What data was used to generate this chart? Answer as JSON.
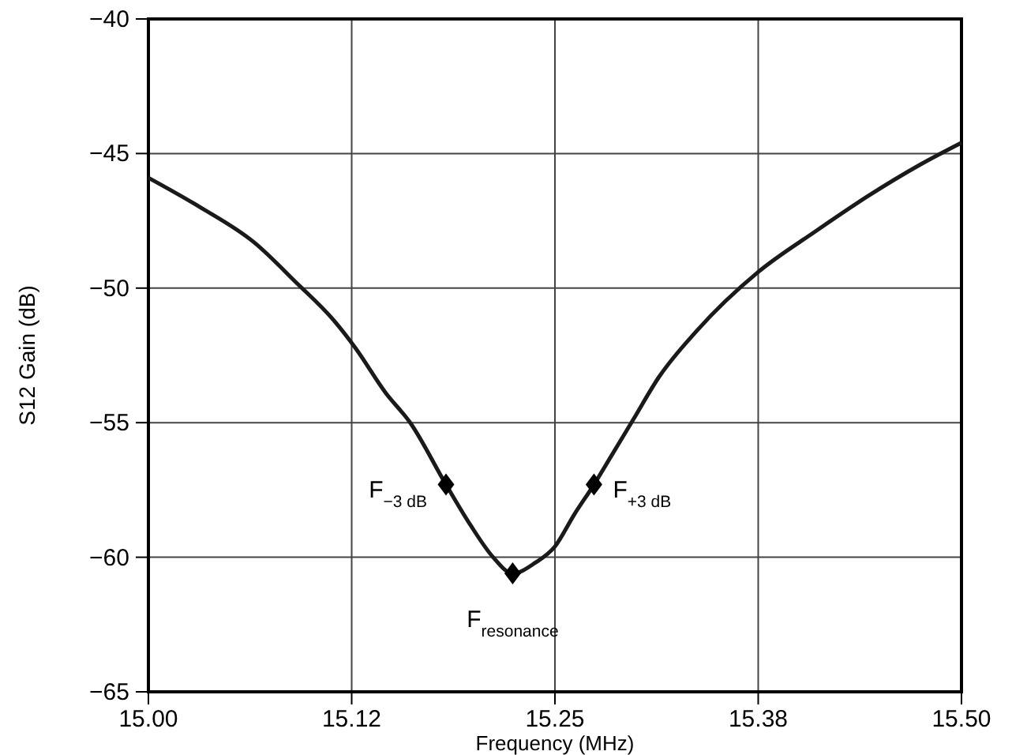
{
  "chart_data": {
    "type": "line",
    "xlabel": "Frequency (MHz)",
    "ylabel": "S12 Gain (dB)",
    "xlim": [
      15.0,
      15.5
    ],
    "ylim": [
      -65,
      -40
    ],
    "xticks": [
      {
        "value": 15.0,
        "label": "15.00"
      },
      {
        "value": 15.125,
        "label": "15.12"
      },
      {
        "value": 15.25,
        "label": "15.25"
      },
      {
        "value": 15.375,
        "label": "15.38"
      },
      {
        "value": 15.5,
        "label": "15.50"
      }
    ],
    "yticks": [
      -65,
      -60,
      -55,
      -50,
      -45,
      -40
    ],
    "grid": true,
    "series": [
      {
        "color": "#1a1a1a",
        "marker": "none",
        "line_style": "solid",
        "x": [
          15.0,
          15.032,
          15.065,
          15.091,
          15.114,
          15.127,
          15.146,
          15.161,
          15.183,
          15.198,
          15.212,
          15.224,
          15.238,
          15.25,
          15.262,
          15.274,
          15.285,
          15.298,
          15.314,
          15.337,
          15.375,
          15.41,
          15.442,
          15.475,
          15.5
        ],
        "values": [
          -45.9,
          -47.0,
          -48.3,
          -49.8,
          -51.2,
          -52.2,
          -53.9,
          -55.0,
          -57.3,
          -58.8,
          -60.0,
          -60.6,
          -60.2,
          -59.6,
          -58.4,
          -57.3,
          -56.2,
          -54.9,
          -53.3,
          -51.6,
          -49.4,
          -47.9,
          -46.6,
          -45.4,
          -44.6
        ]
      },
      {
        "type": "scatter",
        "color": "#000000",
        "marker": "diamond",
        "x": [
          15.183,
          15.224,
          15.274
        ],
        "values": [
          -57.3,
          -60.6,
          -57.3
        ]
      }
    ],
    "annotations": [
      {
        "text": "F$_{−3 dB}$",
        "x": 15.183,
        "y": -57.3
      },
      {
        "text": "F$_{resonance}$",
        "x": 15.224,
        "y": -60.6
      },
      {
        "text": "F$_{+3 dB}$",
        "x": 15.274,
        "y": -57.3
      }
    ]
  }
}
